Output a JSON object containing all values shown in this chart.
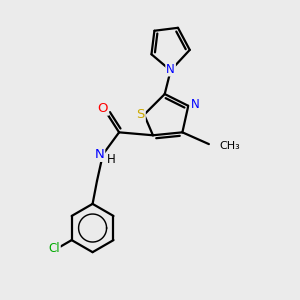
{
  "bg_color": "#ebebeb",
  "atom_colors": {
    "C": "#000000",
    "N": "#0000ff",
    "O": "#ff0000",
    "S": "#ccaa00",
    "Cl": "#00aa00",
    "H": "#000000"
  },
  "bond_color": "#000000",
  "bond_width": 1.6,
  "font_size": 8.5
}
